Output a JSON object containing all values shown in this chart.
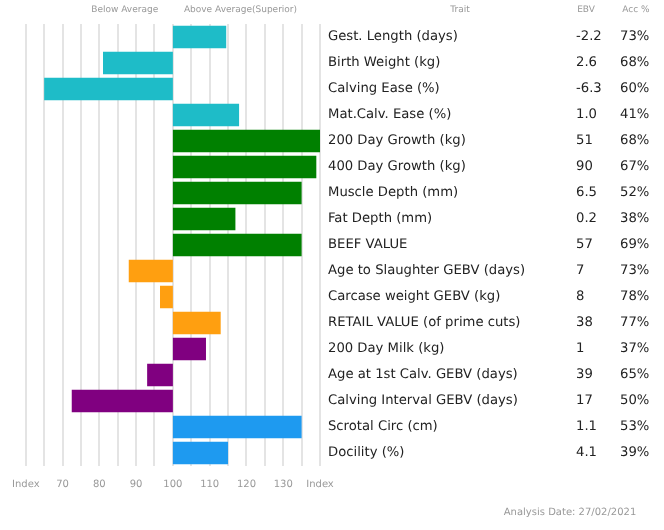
{
  "chart_data": {
    "type": "bar",
    "orientation": "horizontal",
    "categories": [
      "Gest. Length (days)",
      "Birth Weight (kg)",
      "Calving Ease (%)",
      "Mat.Calv. Ease (%)",
      "200 Day Growth (kg)",
      "400 Day Growth (kg)",
      "Muscle Depth (mm)",
      "Fat Depth (mm)",
      "BEEF VALUE",
      "Age to Slaughter GEBV (days)",
      "Carcase weight GEBV (kg)",
      "RETAIL VALUE (of prime cuts)",
      "200 Day Milk (kg)",
      "Age at 1st Calv. GEBV (days)",
      "Calving Interval GEBV (days)",
      "Scrotal Circ (cm)",
      "Docility (%)"
    ],
    "base": [
      100,
      100,
      100,
      100,
      100,
      100,
      100,
      100,
      100,
      100,
      100,
      100,
      100,
      100,
      100,
      100,
      100
    ],
    "values": [
      14.5,
      -19,
      -35,
      18,
      40,
      39,
      35,
      17,
      35,
      -12,
      -3.5,
      13,
      9,
      -7,
      -27.5,
      35,
      15
    ],
    "colors": [
      "#1ebcc8",
      "#1ebcc8",
      "#1ebcc8",
      "#1ebcc8",
      "#008000",
      "#008000",
      "#008000",
      "#008000",
      "#008000",
      "#ff9f10",
      "#ff9f10",
      "#ff9f10",
      "#800080",
      "#800080",
      "#800080",
      "#1e9af0",
      "#1e9af0"
    ],
    "xlim": [
      60,
      140
    ],
    "xticks": [
      {
        "value": 60,
        "label": "Index"
      },
      {
        "value": 65,
        "label": null
      },
      70,
      {
        "value": 75,
        "label": null
      },
      80,
      {
        "value": 85,
        "label": null
      },
      90,
      {
        "value": 95,
        "label": null
      },
      100,
      {
        "value": 105,
        "label": null
      },
      110,
      {
        "value": 115,
        "label": null
      },
      120,
      {
        "value": 125,
        "label": null
      },
      130,
      {
        "value": 135,
        "label": null
      },
      {
        "value": 140,
        "label": "Index"
      }
    ],
    "grid": "x",
    "annotations": [
      "Below Average",
      "Above Average(Superior)",
      "Trait",
      "EBV",
      "Acc %",
      "-2.2",
      "73%",
      "2.6",
      "68%",
      "-6.3",
      "60%",
      "1.0",
      "41%",
      "51",
      "68%",
      "90",
      "67%",
      "6.5",
      "52%",
      "0.2",
      "38%",
      "57",
      "69%",
      "7",
      "73%",
      "8",
      "78%",
      "38",
      "77%",
      "1",
      "37%",
      "39",
      "65%",
      "17",
      "50%",
      "1.1",
      "53%",
      "4.1",
      "39%",
      "Analysis Date: 27/02/2021"
    ]
  }
}
